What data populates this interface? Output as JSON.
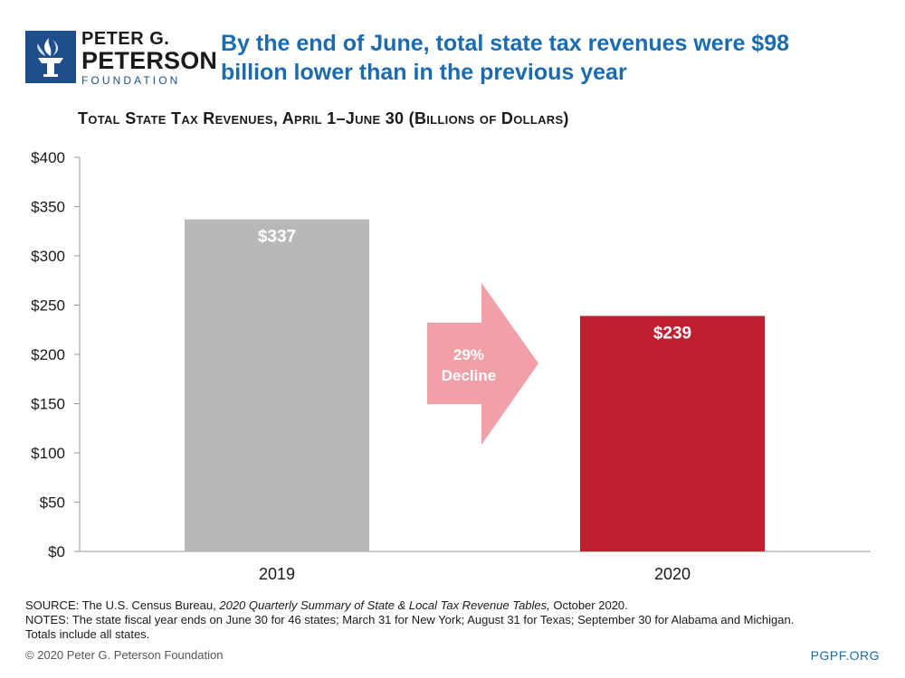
{
  "logo": {
    "line1": "PETER G.",
    "line2": "PETERSON",
    "line3": "FOUNDATION",
    "icon": "torch-icon"
  },
  "headline": {
    "line1": "By the end of June, total state tax revenues were $98",
    "line2": "billion lower than in the previous year"
  },
  "colors": {
    "headline": "#1b6bb0",
    "bar_2019": "#b8b8b8",
    "bar_2020": "#c01f2f",
    "arrow": "#f0a0a6",
    "logo_blue": "#1f4e8c"
  },
  "chart_data": {
    "type": "bar",
    "title": "Total State Tax Revenues, April 1–June 30 (Billions of Dollars)",
    "categories": [
      "2019",
      "2020"
    ],
    "values": [
      337,
      239
    ],
    "value_labels": [
      "$337",
      "$239"
    ],
    "ylim": [
      0,
      400
    ],
    "yticks": [
      0,
      50,
      100,
      150,
      200,
      250,
      300,
      350,
      400
    ],
    "ytick_labels": [
      "$0",
      "$50",
      "$100",
      "$150",
      "$200",
      "$250",
      "$300",
      "$350",
      "$400"
    ],
    "xlabel": "",
    "ylabel": "",
    "grid": false,
    "annotation": {
      "line1": "29%",
      "line2": "Decline"
    }
  },
  "notes": {
    "source_prefix": "SOURCE: The U.S. Census Bureau, ",
    "source_title": "2020 Quarterly Summary of State & Local Tax Revenue Tables,",
    "source_suffix": " October 2020.",
    "notes_line": "NOTES: The state fiscal year ends on June 30 for 46 states; March 31 for New York; August 31 for Texas; September 30 for Alabama and Michigan.",
    "totals_line": "Totals include all states."
  },
  "footer": {
    "copyright": "© 2020 Peter G. Peterson Foundation",
    "site": "PGPF.ORG"
  }
}
